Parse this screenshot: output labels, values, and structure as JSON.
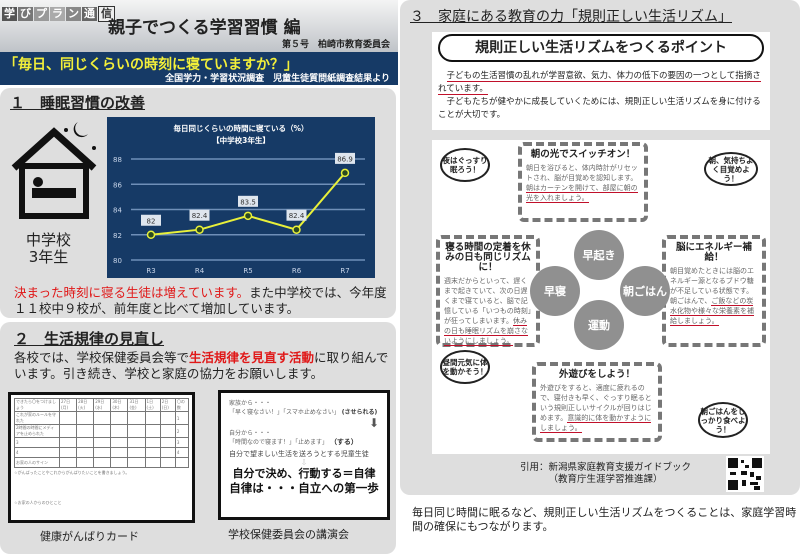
{
  "header": {
    "logo": [
      "学",
      "び",
      "プ",
      "ラ",
      "ン",
      "通",
      "信"
    ],
    "title": "親子でつくる学習習慣 編",
    "issue": "第５号　柏崎市教育委員会"
  },
  "banner": {
    "question": "「毎日、同じくらいの時刻に寝ていますか？」",
    "source": "全国学力・学習状況調査　児童生徒質問紙調査結果より"
  },
  "section1": {
    "title": "１　睡眠習慣の改善",
    "grade_label_1": "中学校",
    "grade_label_2": "3年生",
    "text_red": "決まった時刻に寝る生徒は増えています。",
    "text_rest": "また中学校では、今年度１１校中９校が、前年度と比べて増加しています。"
  },
  "chart_data": {
    "type": "line",
    "title": "毎日同じくらいの時間に寝ている（%）",
    "subtitle": "【中学校3年生】",
    "categories": [
      "R3",
      "R4",
      "R5",
      "R6",
      "R7"
    ],
    "values": [
      82,
      82.4,
      83.5,
      82.4,
      86.9
    ],
    "ylim": [
      80,
      88
    ],
    "yticks": [
      80,
      82,
      84,
      86,
      88
    ],
    "grid": true,
    "colors": {
      "background": "#163a66",
      "line": "#e8f03a",
      "grid": "#6f8fb8"
    }
  },
  "section2": {
    "title": "２　生活規律の見直し",
    "text_a": "各校では、学校保健委員会等で",
    "text_red": "生活規律を見直す活動",
    "text_b": "に取り組んでいます。引き続き、学校と家庭の協力をお願いします。",
    "card1": {
      "caption": "健康がんばりカード",
      "header": [
        "できたら〇をつけましょう",
        "27日(月)",
        "28日(火)",
        "29日(水)",
        "30日(木)",
        "31日(金)",
        "1日(土)",
        "2日(日)",
        "〇の数"
      ],
      "rows": [
        [
          "これが家のルールを守れた",
          "1"
        ],
        [
          "2時間の時間にメディアを止められた",
          "2"
        ],
        [
          "3",
          "3"
        ],
        [
          "4",
          "4"
        ],
        [
          "お家の人のサイン",
          ""
        ]
      ],
      "note1": "☆がんばったことやこれからがんばりたいことを書きましょう。",
      "note2": "☆お家の人からのひとこと"
    },
    "card2": {
      "caption": "学校保健委員会の講演会",
      "l1": "家族から・・・",
      "l2": "「早く寝なさい！」「スマホ止めなさい」",
      "l2b": "(させられる)",
      "l3": "自分から・・・",
      "l4": "「時間なので寝ます！」「止めます」",
      "l4b": "（する）",
      "l5": "自分で望ましい生活を送ろうとする児童生徒",
      "l6": "自分で決め、行動する＝自律",
      "l7": "自律は・・・自立への第一歩"
    }
  },
  "section3": {
    "title": "３　家庭にある教育の力「規則正しい生活リズム」",
    "point_title": "規則正しい生活リズムをつくるポイント",
    "p1": "子どもの生活習慣の乱れが学習意欲、気力、体力の低下の要因の一つとして指摘されています。",
    "p2": "子どもたちが健やかに成長していくためには、規則正しい生活リズムを身に付けることが大切です。",
    "cycle": {
      "top_title": "朝の光でスイッチオン！",
      "top_text": "朝日を浴びると、体内時計がリセットされ、脳が目覚めを認知します。",
      "top_ul": "朝はカーテンを開けて、部屋に朝の光を入れましょう。",
      "right_title": "脳にエネルギー補給！",
      "right_text": "朝目覚めたときには脳のエネルギー源となるブドウ糖が不足している状態です。朝ごはんで、",
      "right_ul": "ご飯などの炭水化物や様々な栄養素を補給しましょう。",
      "bottom_title": "外遊びをしよう！",
      "bottom_text": "外遊びをすると、適度に疲れるので、寝付きも早く、ぐっすり眠るという規則正しいサイクルが回りはじめます。",
      "bottom_ul": "意識的に体を動かすようにしましょう。",
      "left_title": "寝る時間の定着を休みの日も同じリズムに！",
      "left_text": "週末だからといって、遅くまで起きていて、次の日遅くまで寝ていると、脳で記憶している「いつもの時刻」が狂ってしまいます。",
      "left_ul": "休みの日も睡眠リズムを崩さないようにしましょう。",
      "circles": [
        "早起き",
        "朝ごはん",
        "運動",
        "早寝"
      ],
      "bubbles": [
        "夜はぐっすり眠ろう！",
        "朝、気持ちよく目覚めよう！",
        "昼間元気に体を動かそう！",
        "朝ごはんをしっかり食べよう！"
      ]
    },
    "citation1": "引用：新潟県家庭教育支援ガイドブック",
    "citation2": "（教育庁生涯学習推進課）",
    "closing": "毎日同じ時間に眠るなど、規則正しい生活リズムをつくることは、家庭学習時間の確保にもつながります。"
  }
}
